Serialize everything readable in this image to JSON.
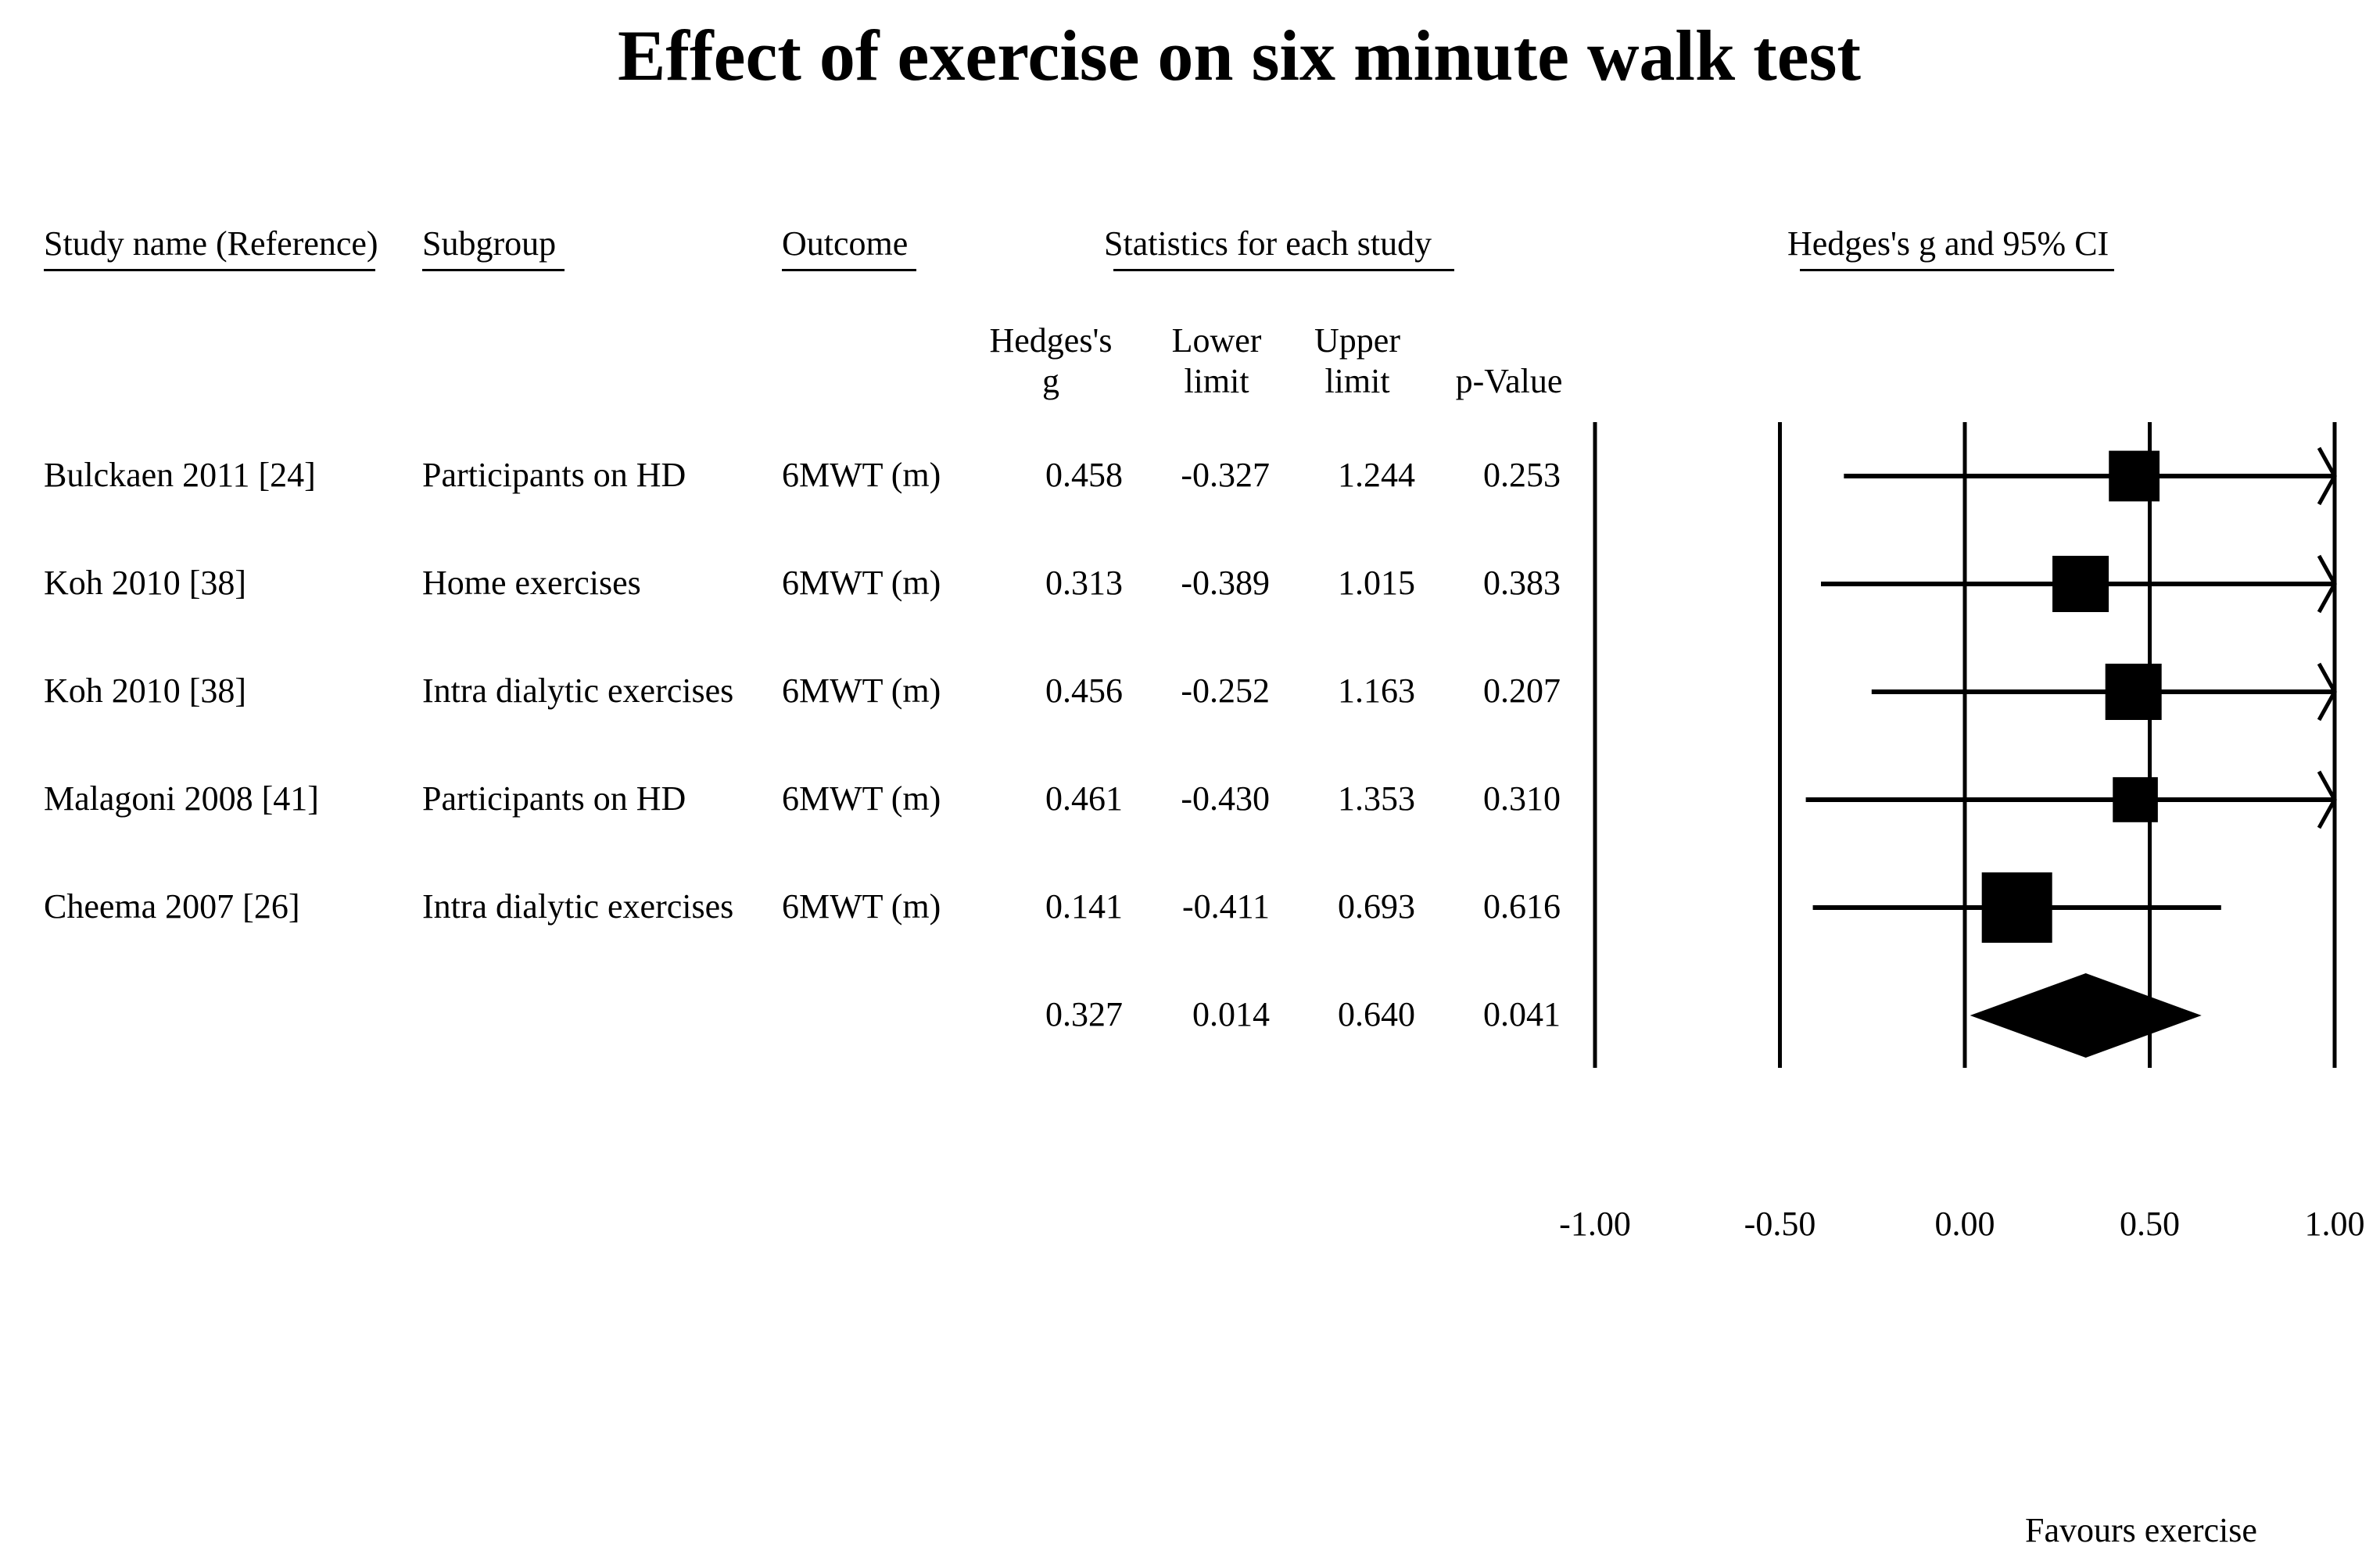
{
  "title": "Effect of exercise on six minute walk test",
  "headers": {
    "study": "Study name (Reference)",
    "subgroup": "Subgroup",
    "outcome": "Outcome",
    "stats": "Statistics for each study",
    "plot": "Hedges's g and 95% CI"
  },
  "columns": {
    "g_line1": "Hedges's",
    "g_line2": "g",
    "lower_line1": "Lower",
    "lower_line2": "limit",
    "upper_line1": "Upper",
    "upper_line2": "limit",
    "p": "p-Value"
  },
  "rows": [
    {
      "study": "Bulckaen 2011 [24]",
      "subgroup": "Participants on HD",
      "outcome": "6MWT (m)",
      "g": "0.458",
      "lower": "-0.327",
      "upper": "1.244",
      "p": "0.253"
    },
    {
      "study": "Koh 2010 [38]",
      "subgroup": "Home exercises",
      "outcome": "6MWT (m)",
      "g": "0.313",
      "lower": "-0.389",
      "upper": "1.015",
      "p": "0.383"
    },
    {
      "study": "Koh 2010 [38]",
      "subgroup": "Intra dialytic exercises",
      "outcome": "6MWT (m)",
      "g": "0.456",
      "lower": "-0.252",
      "upper": "1.163",
      "p": "0.207"
    },
    {
      "study": "Malagoni 2008 [41]",
      "subgroup": "Participants on HD",
      "outcome": "6MWT (m)",
      "g": "0.461",
      "lower": "-0.430",
      "upper": "1.353",
      "p": "0.310"
    },
    {
      "study": "Cheema 2007 [26]",
      "subgroup": "Intra dialytic exercises",
      "outcome": "6MWT (m)",
      "g": "0.141",
      "lower": "-0.411",
      "upper": "0.693",
      "p": "0.616"
    }
  ],
  "summary": {
    "g": "0.327",
    "lower": "0.014",
    "upper": "0.640",
    "p": "0.041"
  },
  "favours_label": "Favours exercise",
  "chart_data": {
    "type": "forest",
    "title": "Effect of exercise on six minute walk test",
    "xlim": [
      -1.0,
      1.0
    ],
    "ticks": [
      "-1.00",
      "-0.50",
      "0.00",
      "0.50",
      "1.00"
    ],
    "tick_values": [
      -1.0,
      -0.5,
      0.0,
      0.5,
      1.0
    ],
    "studies": [
      {
        "name": "Bulckaen 2011 [24]",
        "g": 0.458,
        "lower": -0.327,
        "upper": 1.244,
        "weight": 0.9
      },
      {
        "name": "Koh 2010 [38]",
        "g": 0.313,
        "lower": -0.389,
        "upper": 1.015,
        "weight": 1.0
      },
      {
        "name": "Koh 2010 [38]",
        "g": 0.456,
        "lower": -0.252,
        "upper": 1.163,
        "weight": 1.0
      },
      {
        "name": "Malagoni 2008 [41]",
        "g": 0.461,
        "lower": -0.43,
        "upper": 1.353,
        "weight": 0.8
      },
      {
        "name": "Cheema 2007 [26]",
        "g": 0.141,
        "lower": -0.411,
        "upper": 0.693,
        "weight": 1.25
      }
    ],
    "summary": {
      "g": 0.327,
      "lower": 0.014,
      "upper": 0.64
    },
    "xlabel_right": "Favours exercise"
  }
}
